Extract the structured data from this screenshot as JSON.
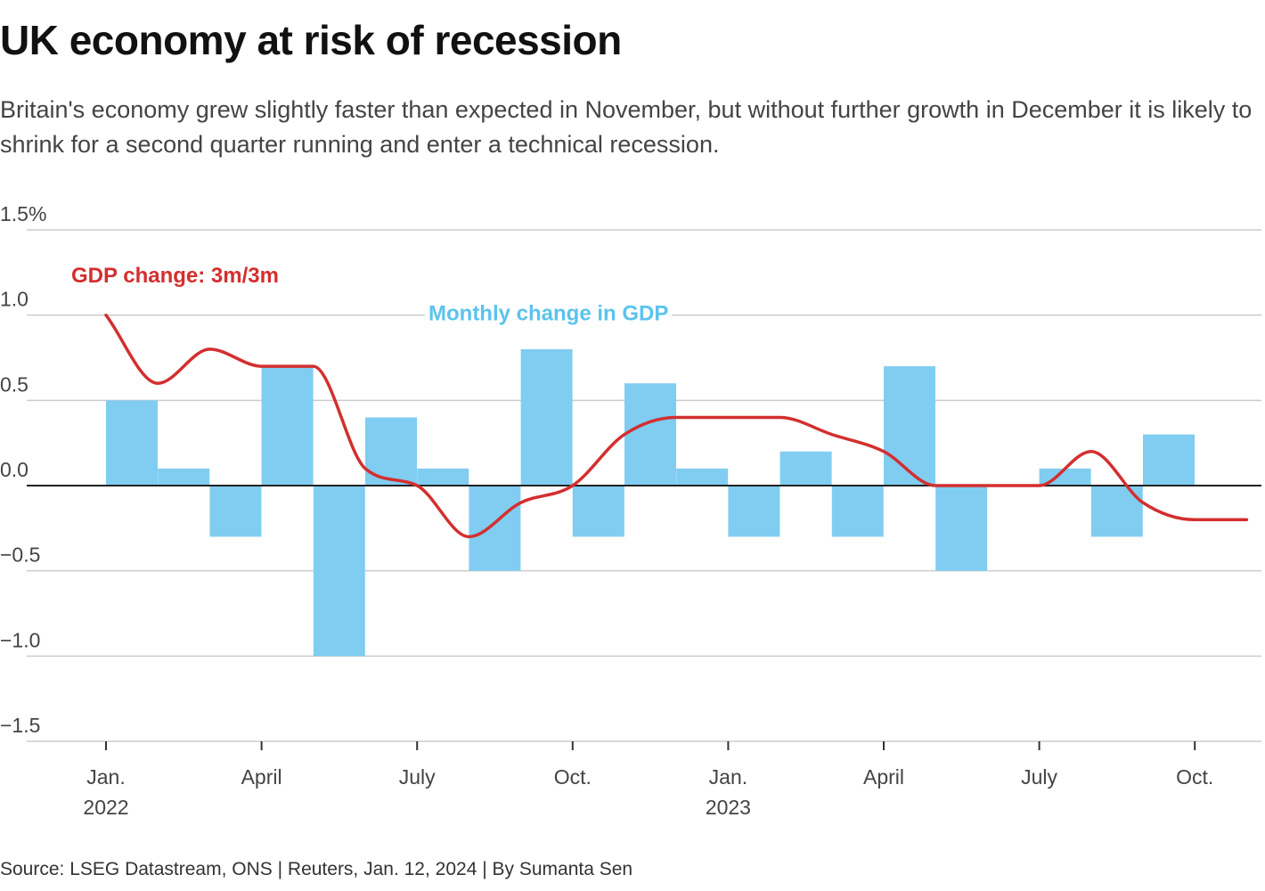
{
  "header": {
    "title": "UK economy at risk of recession",
    "subtitle": "Britain's economy grew slightly faster than expected in November, but without further growth in December it is likely to shrink for a second quarter running and enter a technical recession."
  },
  "footer": {
    "source": "Source: LSEG Datastream, ONS | Reuters, Jan. 12, 2024 | By Sumanta Sen"
  },
  "colors": {
    "bar": "#80cdf1",
    "line": "#d32f2f",
    "bar_label": "#5bc3ee",
    "grid": "#cccccc",
    "zero_line": "#222222"
  },
  "chart_data": {
    "type": "bar",
    "x": [
      "2022-01",
      "2022-02",
      "2022-03",
      "2022-04",
      "2022-05",
      "2022-06",
      "2022-07",
      "2022-08",
      "2022-09",
      "2022-10",
      "2022-11",
      "2022-12",
      "2023-01",
      "2023-02",
      "2023-03",
      "2023-04",
      "2023-05",
      "2023-06",
      "2023-07",
      "2023-08",
      "2023-09",
      "2023-10",
      "2023-11"
    ],
    "ylim": [
      -1.5,
      1.5
    ],
    "y_ticks": [
      {
        "value": 1.5,
        "label": "1.5%"
      },
      {
        "value": 1.0,
        "label": "1.0"
      },
      {
        "value": 0.5,
        "label": "0.5"
      },
      {
        "value": 0.0,
        "label": "0.0"
      },
      {
        "value": -0.5,
        "label": "−0.5"
      },
      {
        "value": -1.0,
        "label": "−1.0"
      },
      {
        "value": -1.5,
        "label": "−1.5"
      }
    ],
    "x_ticks": [
      {
        "index": 0,
        "label": "Jan.",
        "year": "2022"
      },
      {
        "index": 3,
        "label": "April",
        "year": ""
      },
      {
        "index": 6,
        "label": "July",
        "year": ""
      },
      {
        "index": 9,
        "label": "Oct.",
        "year": ""
      },
      {
        "index": 12,
        "label": "Jan.",
        "year": "2023"
      },
      {
        "index": 15,
        "label": "April",
        "year": ""
      },
      {
        "index": 18,
        "label": "July",
        "year": ""
      },
      {
        "index": 21,
        "label": "Oct.",
        "year": ""
      }
    ],
    "grid": true,
    "series": [
      {
        "name": "Monthly change in GDP",
        "type": "bar",
        "values": [
          0.5,
          0.1,
          -0.3,
          0.7,
          -1.0,
          0.4,
          0.1,
          -0.5,
          0.8,
          -0.3,
          0.6,
          0.1,
          -0.3,
          0.2,
          -0.3,
          0.7,
          -0.5,
          null,
          0.1,
          -0.3,
          0.3,
          null,
          null
        ]
      },
      {
        "name": "GDP change: 3m/3m",
        "type": "line",
        "values": [
          1.0,
          0.6,
          0.8,
          0.7,
          0.7,
          0.1,
          0.0,
          -0.3,
          -0.1,
          0.0,
          0.3,
          0.4,
          0.4,
          0.4,
          0.3,
          0.2,
          0.0,
          0.0,
          0.0,
          0.2,
          -0.1,
          -0.2,
          -0.2
        ]
      }
    ]
  }
}
